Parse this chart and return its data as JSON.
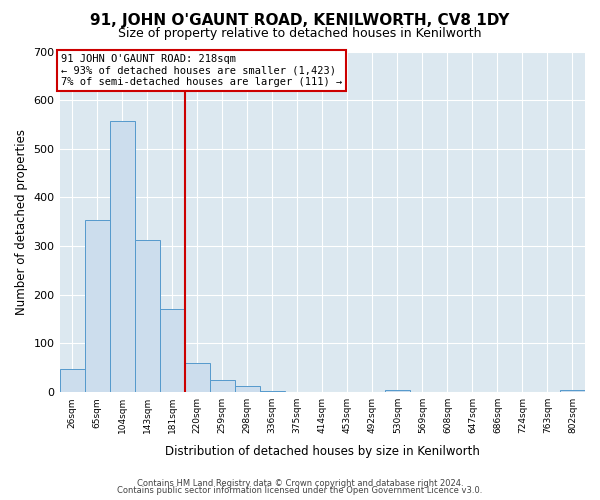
{
  "title": "91, JOHN O'GAUNT ROAD, KENILWORTH, CV8 1DY",
  "subtitle": "Size of property relative to detached houses in Kenilworth",
  "xlabel": "Distribution of detached houses by size in Kenilworth",
  "ylabel": "Number of detached properties",
  "bin_labels": [
    "26sqm",
    "65sqm",
    "104sqm",
    "143sqm",
    "181sqm",
    "220sqm",
    "259sqm",
    "298sqm",
    "336sqm",
    "375sqm",
    "414sqm",
    "453sqm",
    "492sqm",
    "530sqm",
    "569sqm",
    "608sqm",
    "647sqm",
    "686sqm",
    "724sqm",
    "763sqm",
    "802sqm"
  ],
  "bar_heights": [
    47,
    354,
    557,
    313,
    170,
    60,
    25,
    12,
    3,
    0,
    0,
    0,
    0,
    5,
    0,
    0,
    0,
    0,
    0,
    0,
    5
  ],
  "bar_color": "#ccdded",
  "bar_edge_color": "#5599cc",
  "vline_x_index": 5,
  "vline_color": "#cc0000",
  "annotation_title": "91 JOHN O'GAUNT ROAD: 218sqm",
  "annotation_line1": "← 93% of detached houses are smaller (1,423)",
  "annotation_line2": "7% of semi-detached houses are larger (111) →",
  "annotation_box_color": "#ffffff",
  "annotation_box_edge": "#cc0000",
  "ylim": [
    0,
    700
  ],
  "yticks": [
    0,
    100,
    200,
    300,
    400,
    500,
    600,
    700
  ],
  "footer1": "Contains HM Land Registry data © Crown copyright and database right 2024.",
  "footer2": "Contains public sector information licensed under the Open Government Licence v3.0.",
  "bg_color": "#ffffff",
  "plot_bg_color": "#dce8f0"
}
